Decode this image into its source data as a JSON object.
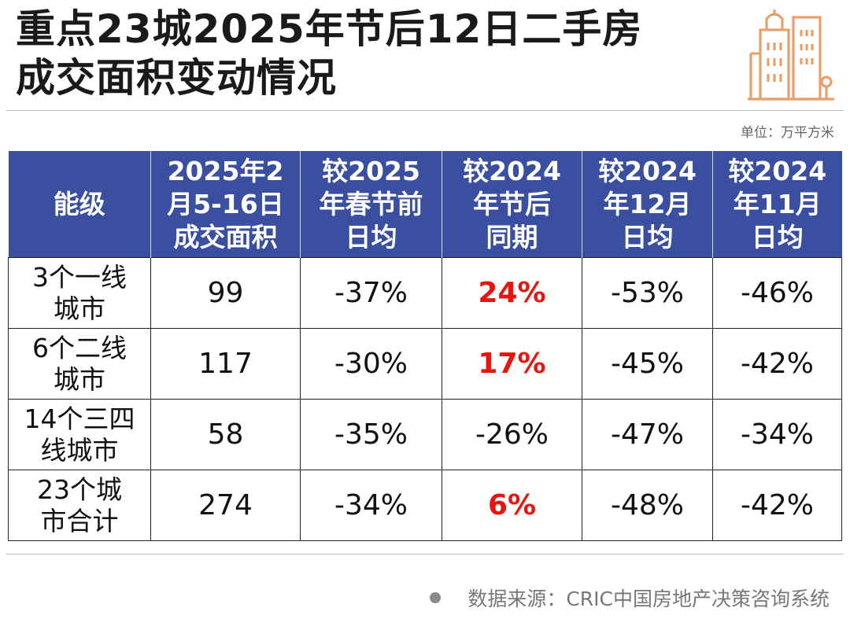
{
  "title": {
    "line1": "重点23城2025年节后12日二手房",
    "line2": "成交面积变动情况"
  },
  "logo": {
    "icon": "city-buildings-icon",
    "color": "#e8a06a"
  },
  "unit_label": "单位：万平方米",
  "colors": {
    "header_bg": "#3b4fa1",
    "positive": "#e8140f",
    "text": "#111111"
  },
  "table": {
    "headers": [
      "能级",
      "2025年2\n月5-16日\n成交面积",
      "较2025\n年春节前\n日均",
      "较2024\n年节后\n同期",
      "较2024\n年12月\n日均",
      "较2024\n年11月\n日均"
    ],
    "rows": [
      {
        "level": "3个一线\n城市",
        "area": "99",
        "vs_pre_festival": "-37%",
        "vs_2024_same": "24%",
        "vs_dec": "-53%",
        "vs_nov": "-46%"
      },
      {
        "level": "6个二线\n城市",
        "area": "117",
        "vs_pre_festival": "-30%",
        "vs_2024_same": "17%",
        "vs_dec": "-45%",
        "vs_nov": "-42%"
      },
      {
        "level": "14个三四\n线城市",
        "area": "58",
        "vs_pre_festival": "-35%",
        "vs_2024_same": "-26%",
        "vs_dec": "-47%",
        "vs_nov": "-34%"
      },
      {
        "level": "23个城\n市合计",
        "area": "274",
        "vs_pre_festival": "-34%",
        "vs_2024_same": "6%",
        "vs_dec": "-48%",
        "vs_nov": "-42%"
      }
    ]
  },
  "source": "数据来源：CRIC中国房地产决策咨询系统"
}
